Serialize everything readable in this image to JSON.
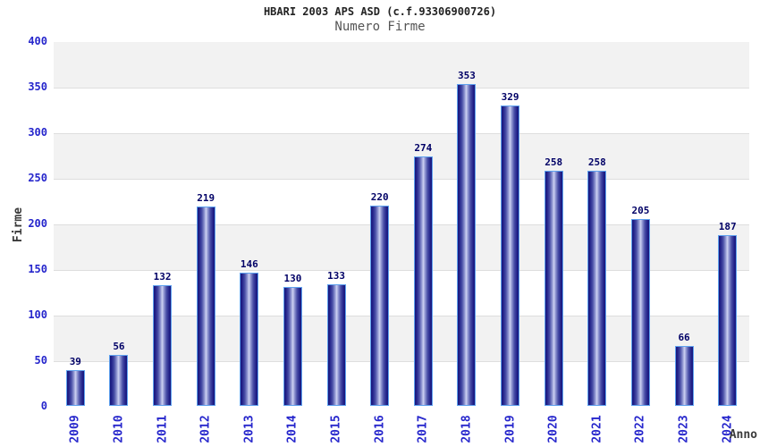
{
  "chart_data": {
    "type": "bar",
    "title": "HBARI 2003 APS ASD (c.f.93306900726)",
    "subtitle": "Numero Firme",
    "xlabel": "Anno",
    "ylabel": "Firme",
    "categories": [
      "2009",
      "2010",
      "2011",
      "2012",
      "2013",
      "2014",
      "2015",
      "2016",
      "2017",
      "2018",
      "2019",
      "2020",
      "2021",
      "2022",
      "2023",
      "2024"
    ],
    "values": [
      39,
      56,
      132,
      219,
      146,
      130,
      133,
      220,
      274,
      353,
      329,
      258,
      258,
      205,
      66,
      187
    ],
    "ylim": [
      0,
      400
    ],
    "ytick_step": 50,
    "ytick_labels": [
      "0",
      "50",
      "100",
      "150",
      "200",
      "250",
      "300",
      "350",
      "400"
    ],
    "legend": "none",
    "grid": "horizontal-bands-alternating",
    "colors": {
      "tick_label": "#2626cc",
      "value_label": "#000066",
      "bar_edge": "#5fa2ef",
      "bar_dark": "#17177c",
      "bar_highlight": "#cfd3f2",
      "band_gray": "#f2f2f2",
      "band_white": "#ffffff",
      "grid_line": "#dedede",
      "plot_border": "#d4d4d4",
      "title_color": "#222222",
      "subtitle_color": "#555555",
      "axis_title_color": "#3a3a3a"
    }
  }
}
